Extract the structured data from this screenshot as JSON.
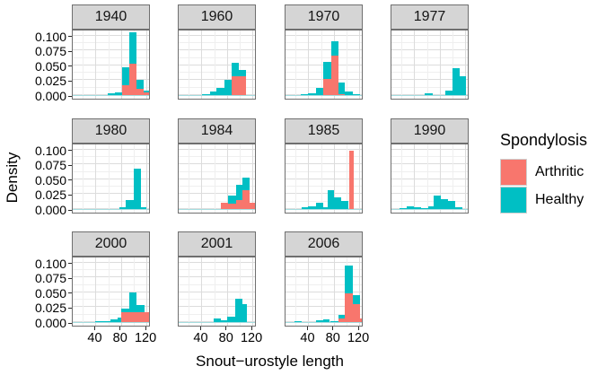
{
  "chart_data": {
    "type": "histogram",
    "facet_variable": "year",
    "xlabel": "Snout−urostyle length",
    "ylabel": "Density",
    "x_domain": [
      4,
      127
    ],
    "y_domain": [
      0,
      0.112
    ],
    "x_ticks": [
      {
        "label": "40",
        "v": 40
      },
      {
        "label": "80",
        "v": 80
      },
      {
        "label": "120",
        "v": 120
      }
    ],
    "y_ticks": [
      {
        "label": "0.100",
        "v": 0.1
      },
      {
        "label": "0.075",
        "v": 0.075
      },
      {
        "label": "0.050",
        "v": 0.05
      },
      {
        "label": "0.025",
        "v": 0.025
      },
      {
        "label": "0.000",
        "v": 0.0
      }
    ],
    "x_minor_gridlines": [
      20,
      60,
      100
    ],
    "y_minor_gridlines": [
      0.0125,
      0.0375,
      0.0625,
      0.0875
    ],
    "grid": true,
    "legend": {
      "title": "Spondylosis",
      "position": "right",
      "items": [
        {
          "label": "Arthritic",
          "color": "#F8766D"
        },
        {
          "label": "Healthy",
          "color": "#00BFC4"
        }
      ]
    },
    "stack_order_note": "arthritic stacked below healthy",
    "facets": [
      {
        "title": "1940",
        "bars": [
          {
            "x0": 59,
            "x1": 70,
            "arthritic": 0,
            "healthy": 0.003
          },
          {
            "x0": 70,
            "x1": 82,
            "arthritic": 0,
            "healthy": 0.005
          },
          {
            "x0": 82,
            "x1": 93,
            "arthritic": 0.017,
            "healthy": 0.029
          },
          {
            "x0": 93,
            "x1": 105,
            "arthritic": 0.053,
            "healthy": 0.053
          },
          {
            "x0": 105,
            "x1": 116,
            "arthritic": 0.011,
            "healthy": 0.015
          },
          {
            "x0": 116,
            "x1": 127,
            "arthritic": 0.004,
            "healthy": 0.004
          }
        ]
      },
      {
        "title": "1960",
        "bars": [
          {
            "x0": 41,
            "x1": 53,
            "arthritic": 0,
            "healthy": 0.0015
          },
          {
            "x0": 53,
            "x1": 64,
            "arthritic": 0,
            "healthy": 0.0055
          },
          {
            "x0": 64,
            "x1": 76,
            "arthritic": 0,
            "healthy": 0.0115
          },
          {
            "x0": 76,
            "x1": 88,
            "arthritic": 0,
            "healthy": 0.026
          },
          {
            "x0": 88,
            "x1": 99,
            "arthritic": 0.032,
            "healthy": 0.023
          },
          {
            "x0": 99,
            "x1": 110,
            "arthritic": 0.032,
            "healthy": 0.01
          }
        ]
      },
      {
        "title": "1970",
        "bars": [
          {
            "x0": 28,
            "x1": 40,
            "arthritic": 0,
            "healthy": 0.001
          },
          {
            "x0": 40,
            "x1": 52,
            "arthritic": 0,
            "healthy": 0.003
          },
          {
            "x0": 52,
            "x1": 64,
            "arthritic": 0,
            "healthy": 0.0115
          },
          {
            "x0": 64,
            "x1": 76,
            "arthritic": 0.027,
            "healthy": 0.029
          },
          {
            "x0": 76,
            "x1": 87,
            "arthritic": 0.066,
            "healthy": 0.025
          },
          {
            "x0": 87,
            "x1": 98,
            "arthritic": 0.0015,
            "healthy": 0.02
          },
          {
            "x0": 98,
            "x1": 110,
            "arthritic": 0,
            "healthy": 0.0055
          },
          {
            "x0": 110,
            "x1": 121,
            "arthritic": 0,
            "healthy": 0.0015
          }
        ]
      },
      {
        "title": "1977",
        "bars": [
          {
            "x0": 57,
            "x1": 69,
            "arthritic": 0,
            "healthy": 0.0025
          },
          {
            "x0": 89,
            "x1": 100,
            "arthritic": 0,
            "healthy": 0.0075
          },
          {
            "x0": 100,
            "x1": 111,
            "arthritic": 0,
            "healthy": 0.045
          },
          {
            "x0": 111,
            "x1": 121,
            "arthritic": 0,
            "healthy": 0.032
          }
        ]
      },
      {
        "title": "1980",
        "bars": [
          {
            "x0": 77,
            "x1": 88,
            "arthritic": 0,
            "healthy": 0.003
          },
          {
            "x0": 88,
            "x1": 100,
            "arthritic": 0,
            "healthy": 0.0155
          },
          {
            "x0": 100,
            "x1": 111,
            "arthritic": 0,
            "healthy": 0.068
          },
          {
            "x0": 111,
            "x1": 120,
            "arthritic": 0,
            "healthy": 0.003
          }
        ]
      },
      {
        "title": "1984",
        "bars": [
          {
            "x0": 71,
            "x1": 82,
            "arthritic": 0.0105,
            "healthy": 0
          },
          {
            "x0": 82,
            "x1": 94,
            "arthritic": 0.009,
            "healthy": 0.014
          },
          {
            "x0": 94,
            "x1": 105,
            "arthritic": 0.0155,
            "healthy": 0.025
          },
          {
            "x0": 105,
            "x1": 116,
            "arthritic": 0.031,
            "healthy": 0.021
          },
          {
            "x0": 116,
            "x1": 127,
            "arthritic": 0.0105,
            "healthy": 0
          }
        ]
      },
      {
        "title": "1985",
        "bars": [
          {
            "x0": 29,
            "x1": 40,
            "arthritic": 0,
            "healthy": 0.003
          },
          {
            "x0": 40,
            "x1": 52,
            "arthritic": 0,
            "healthy": 0.004
          },
          {
            "x0": 52,
            "x1": 63,
            "arthritic": 0,
            "healthy": 0.0105
          },
          {
            "x0": 63,
            "x1": 70,
            "arthritic": 0,
            "healthy": 0.003
          },
          {
            "x0": 70,
            "x1": 81,
            "arthritic": 0,
            "healthy": 0.031
          },
          {
            "x0": 81,
            "x1": 92,
            "arthritic": 0,
            "healthy": 0.02
          },
          {
            "x0": 92,
            "x1": 103,
            "arthritic": 0,
            "healthy": 0.013
          },
          {
            "x0": 104,
            "x1": 111,
            "arthritic": 0.098,
            "healthy": 0
          }
        ]
      },
      {
        "title": "1990",
        "bars": [
          {
            "x0": 17,
            "x1": 28,
            "arthritic": 0,
            "healthy": 0.0015
          },
          {
            "x0": 28,
            "x1": 40,
            "arthritic": 0,
            "healthy": 0.005
          },
          {
            "x0": 40,
            "x1": 51,
            "arthritic": 0,
            "healthy": 0.0025
          },
          {
            "x0": 51,
            "x1": 62,
            "arthritic": 0,
            "healthy": 0.0015
          },
          {
            "x0": 62,
            "x1": 71,
            "arthritic": 0,
            "healthy": 0.005
          },
          {
            "x0": 71,
            "x1": 82,
            "arthritic": 0,
            "healthy": 0.022
          },
          {
            "x0": 82,
            "x1": 93,
            "arthritic": 0,
            "healthy": 0.017
          },
          {
            "x0": 93,
            "x1": 105,
            "arthritic": 0,
            "healthy": 0.013
          },
          {
            "x0": 105,
            "x1": 116,
            "arthritic": 0,
            "healthy": 0.0025
          }
        ]
      },
      {
        "title": "2000",
        "bars": [
          {
            "x0": 40,
            "x1": 52,
            "arthritic": 0,
            "healthy": 0.001
          },
          {
            "x0": 52,
            "x1": 63,
            "arthritic": 0,
            "healthy": 0.002
          },
          {
            "x0": 63,
            "x1": 75,
            "arthritic": 0,
            "healthy": 0.004
          },
          {
            "x0": 75,
            "x1": 81,
            "arthritic": 0,
            "healthy": 0.008
          },
          {
            "x0": 81,
            "x1": 93,
            "arthritic": 0.017,
            "healthy": 0.006
          },
          {
            "x0": 93,
            "x1": 105,
            "arthritic": 0.017,
            "healthy": 0.033
          },
          {
            "x0": 105,
            "x1": 117,
            "arthritic": 0.017,
            "healthy": 0.012
          },
          {
            "x0": 117,
            "x1": 126,
            "arthritic": 0.017,
            "healthy": 0
          }
        ]
      },
      {
        "title": "2001",
        "bars": [
          {
            "x0": 59,
            "x1": 70,
            "arthritic": 0,
            "healthy": 0.006
          },
          {
            "x0": 70,
            "x1": 81,
            "arthritic": 0,
            "healthy": 0.003
          },
          {
            "x0": 81,
            "x1": 93,
            "arthritic": 0,
            "healthy": 0.009
          },
          {
            "x0": 93,
            "x1": 104,
            "arthritic": 0,
            "healthy": 0.039
          },
          {
            "x0": 104,
            "x1": 111,
            "arthritic": 0,
            "healthy": 0.03
          }
        ]
      },
      {
        "title": "2006",
        "bars": [
          {
            "x0": 18,
            "x1": 29,
            "arthritic": 0,
            "healthy": 0.0015
          },
          {
            "x0": 52,
            "x1": 63,
            "arthritic": 0,
            "healthy": 0.003
          },
          {
            "x0": 63,
            "x1": 74,
            "arthritic": 0,
            "healthy": 0.0045
          },
          {
            "x0": 74,
            "x1": 87,
            "arthritic": 0,
            "healthy": 0.002
          },
          {
            "x0": 87,
            "x1": 98,
            "arthritic": 0.006,
            "healthy": 0.006
          },
          {
            "x0": 98,
            "x1": 110,
            "arthritic": 0.048,
            "healthy": 0.047
          },
          {
            "x0": 110,
            "x1": 121,
            "arthritic": 0.03,
            "healthy": 0.015
          },
          {
            "x0": 121,
            "x1": 127,
            "arthritic": 0.006,
            "healthy": 0
          }
        ]
      }
    ]
  },
  "colors": {
    "arthritic": "#F8766D",
    "healthy": "#00BFC4",
    "strip_background": "#d5d5d5",
    "panel_border": "#6f6f6f",
    "grid_major": "#dcdcdc",
    "grid_minor": "#efefef"
  }
}
